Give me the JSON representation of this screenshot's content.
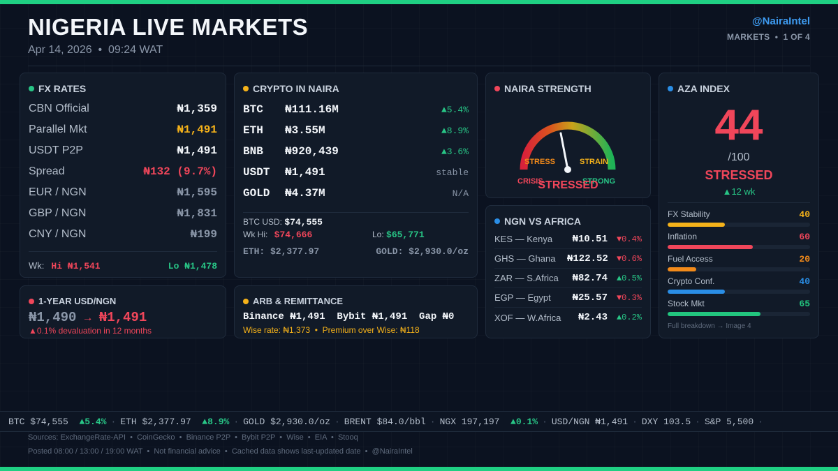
{
  "header": {
    "title": "NIGERIA LIVE MARKETS",
    "date": "Apr 14, 2026  •  09:24 WAT",
    "handle": "@NairaIntel",
    "page_info": "MARKETS  •  1 OF 4"
  },
  "fx": {
    "title": "FX RATES",
    "rows": [
      {
        "label": "CBN Official",
        "value": "₦1,359"
      },
      {
        "label": "Parallel Mkt",
        "value": "₦1,491"
      },
      {
        "label": "USDT P2P",
        "value": "₦1,491"
      },
      {
        "label": "Spread",
        "value": "₦132 (9.7%)"
      },
      {
        "label": "EUR / NGN",
        "value": "₦1,595"
      },
      {
        "label": "GBP / NGN",
        "value": "₦1,831"
      },
      {
        "label": "CNY / NGN",
        "value": "₦199"
      }
    ],
    "week_label": "Wk:",
    "week_hi": "Hi ₦1,541",
    "week_lo": "Lo ₦1,478"
  },
  "crypto": {
    "title": "CRYPTO IN NAIRA",
    "rows": [
      {
        "symbol": "BTC",
        "value": "₦111.16M",
        "change": "▲5.4%"
      },
      {
        "symbol": "ETH",
        "value": "₦3.55M",
        "change": "▲8.9%"
      },
      {
        "symbol": "BNB",
        "value": "₦920,439",
        "change": "▲3.6%"
      },
      {
        "symbol": "USDT",
        "value": "₦1,491",
        "change": "stable"
      },
      {
        "symbol": "GOLD",
        "value": "₦4.37M",
        "change": "N/A"
      }
    ],
    "btc_usd_label": "BTC USD:",
    "btc_usd": "$74,555",
    "wk_hi_label": "Wk Hi:",
    "wk_hi": "$74,666",
    "lo_label": "Lo:",
    "lo": "$65,771",
    "eth_line": "ETH: $2,377.97",
    "gold_line": "GOLD: $2,930.0/oz"
  },
  "strength": {
    "title": "NAIRA STRENGTH",
    "labels": {
      "crisis": "CRISIS",
      "stress": "STRESS",
      "strain": "STRAIN",
      "strong": "STRONG"
    },
    "status": "STRESSED"
  },
  "aza": {
    "title": "AZA INDEX",
    "score": "44",
    "out_of": "/100",
    "status": "STRESSED",
    "trend": "▲12 wk",
    "components": [
      {
        "label": "FX Stability",
        "value": "40",
        "level": 0.4,
        "color": "#f5b21a"
      },
      {
        "label": "Inflation",
        "value": "60",
        "level": 0.6,
        "color": "#f0465a"
      },
      {
        "label": "Fuel Access",
        "value": "20",
        "level": 0.2,
        "color": "#f28a1a"
      },
      {
        "label": "Crypto Conf.",
        "value": "40",
        "level": 0.4,
        "color": "#2a8ee6"
      },
      {
        "label": "Stock Mkt",
        "value": "65",
        "level": 0.65,
        "color": "#22c57e"
      }
    ],
    "footer": "Full breakdown → Image 4"
  },
  "africa": {
    "title": "NGN VS AFRICA",
    "rows": [
      {
        "name": "KES — Kenya",
        "value": "₦10.51",
        "change": "▼0.4%",
        "dir": "down"
      },
      {
        "name": "GHS — Ghana",
        "value": "₦122.52",
        "change": "▼0.6%",
        "dir": "down"
      },
      {
        "name": "ZAR — S.Africa",
        "value": "₦82.74",
        "change": "▲0.5%",
        "dir": "up"
      },
      {
        "name": "EGP — Egypt",
        "value": "₦25.57",
        "change": "▼0.3%",
        "dir": "down"
      },
      {
        "name": "XOF — W.Africa",
        "value": "₦2.43",
        "change": "▲0.2%",
        "dir": "up"
      }
    ]
  },
  "usdngn": {
    "title": "1-YEAR USD/NGN",
    "from": "₦1,490",
    "arrow": "→",
    "to": "₦1,491",
    "note": "▲0.1% devaluation in 12 months"
  },
  "arb": {
    "title": "ARB & REMITTANCE",
    "line": "Binance ₦1,491  Bybit ₦1,491  Gap ₦0",
    "wise": "Wise rate: ₦1,373  •  Premium over Wise: ₦118"
  },
  "ticker": [
    {
      "label": "BTC $74,555",
      "change": "▲5.4%"
    },
    {
      "label": "ETH $2,377.97",
      "change": "▲8.9%"
    },
    {
      "label": "GOLD $2,930.0/oz",
      "change": ""
    },
    {
      "label": "BRENT $84.0/bbl",
      "change": ""
    },
    {
      "label": "NGX 197,197",
      "change": "▲0.1%"
    },
    {
      "label": "USD/NGN ₦1,491",
      "change": ""
    },
    {
      "label": "DXY 103.5",
      "change": ""
    },
    {
      "label": "S&P 5,500",
      "change": ""
    }
  ],
  "footer": {
    "sources": "Sources: ExchangeRate-API  •  CoinGecko  •  Binance P2P  •  Bybit P2P  •  Wise  •  EIA  •  Stooq",
    "notes": "Posted 08:00 / 13:00 / 19:00 WAT  •  Not financial advice  •  Cached data shows last-updated date  •  @NairaIntel"
  }
}
